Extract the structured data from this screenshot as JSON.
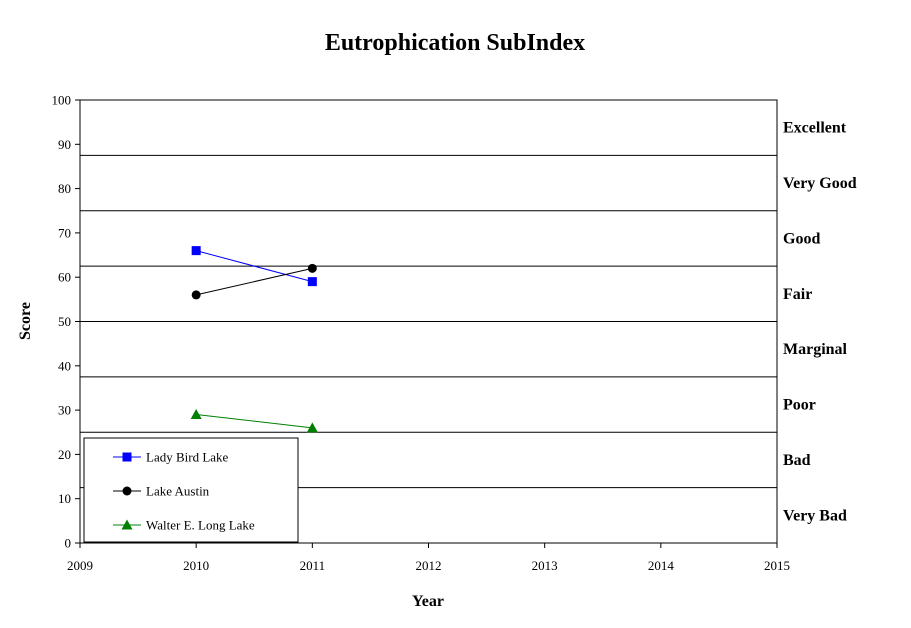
{
  "chart_data": {
    "type": "line",
    "title": "Eutrophication SubIndex",
    "xlabel": "Year",
    "ylabel": "Score",
    "xlim": [
      2009,
      2015
    ],
    "ylim": [
      0,
      100
    ],
    "x_ticks": [
      "2009",
      "2010",
      "2011",
      "2012",
      "2013",
      "2014",
      "2015"
    ],
    "y_ticks": [
      "0",
      "10",
      "20",
      "30",
      "40",
      "50",
      "60",
      "70",
      "80",
      "90",
      "100"
    ],
    "grid": false,
    "legend_position": "bottom-left",
    "bands": [
      {
        "label": "Excellent",
        "min": 87.5,
        "max": 100
      },
      {
        "label": "Very Good",
        "min": 75,
        "max": 87.5
      },
      {
        "label": "Good",
        "min": 62.5,
        "max": 75
      },
      {
        "label": "Fair",
        "min": 50,
        "max": 62.5
      },
      {
        "label": "Marginal",
        "min": 37.5,
        "max": 50
      },
      {
        "label": "Poor",
        "min": 25,
        "max": 37.5
      },
      {
        "label": "Bad",
        "min": 12.5,
        "max": 25
      },
      {
        "label": "Very Bad",
        "min": 0,
        "max": 12.5
      }
    ],
    "series": [
      {
        "name": "Lady Bird Lake",
        "x": [
          2010,
          2011
        ],
        "y": [
          66,
          59
        ],
        "color": "#0000ff",
        "marker": "square"
      },
      {
        "name": "Lake Austin",
        "x": [
          2010,
          2011
        ],
        "y": [
          56,
          62
        ],
        "color": "#000000",
        "marker": "circle"
      },
      {
        "name": "Walter E. Long Lake",
        "x": [
          2010,
          2011
        ],
        "y": [
          29,
          26
        ],
        "color": "#008000",
        "marker": "triangle"
      }
    ]
  }
}
